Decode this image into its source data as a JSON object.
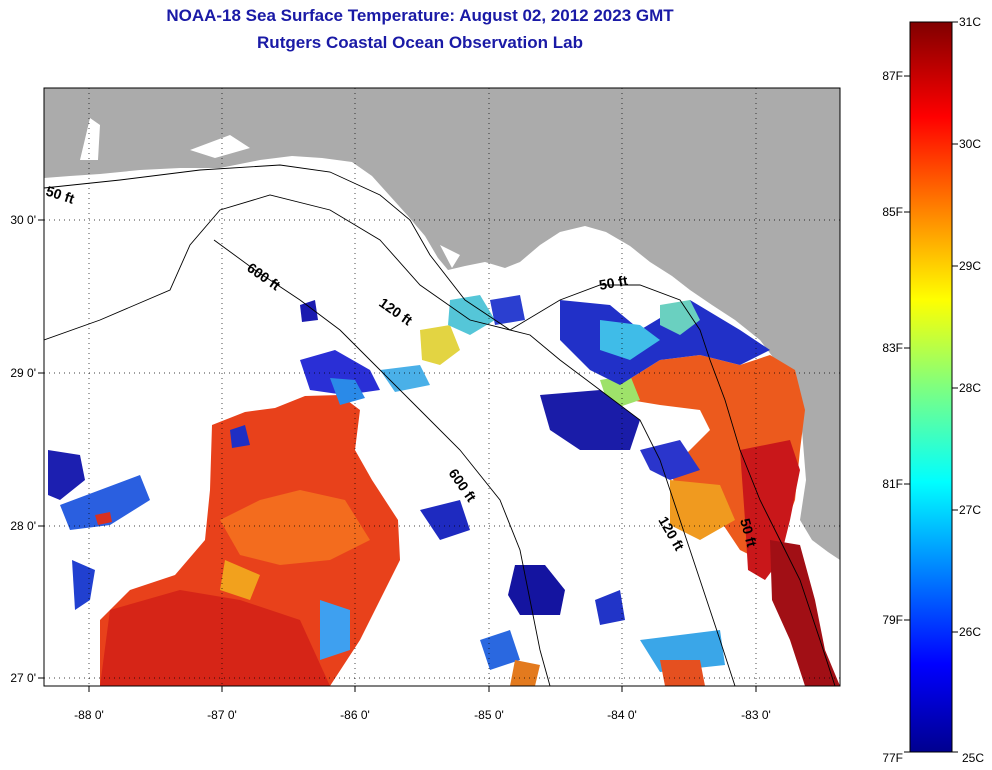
{
  "title_line1": "NOAA-18 Sea Surface Temperature:  August 02, 2012 2023 GMT",
  "title_line2": "Rutgers Coastal Ocean Observation Lab",
  "x_ticks": [
    "-88 0'",
    "-87 0'",
    "-86 0'",
    "-85 0'",
    "-84 0'",
    "-83 0'"
  ],
  "y_ticks": [
    "30 0'",
    "29 0'",
    "28 0'",
    "27 0'"
  ],
  "depth_labels": [
    "50 ft",
    "600 ft",
    "120 ft",
    "50 ft",
    "600 ft",
    "120 ft",
    "50 ft"
  ],
  "colorbar": {
    "celsius": [
      "31C",
      "30C",
      "29C",
      "28C",
      "27C",
      "26C",
      "25C"
    ],
    "fahrenheit": [
      "87F",
      "85F",
      "83F",
      "81F",
      "79F",
      "77F"
    ]
  },
  "colors": {
    "land": "#ababab",
    "title": "#1a1aa6"
  }
}
